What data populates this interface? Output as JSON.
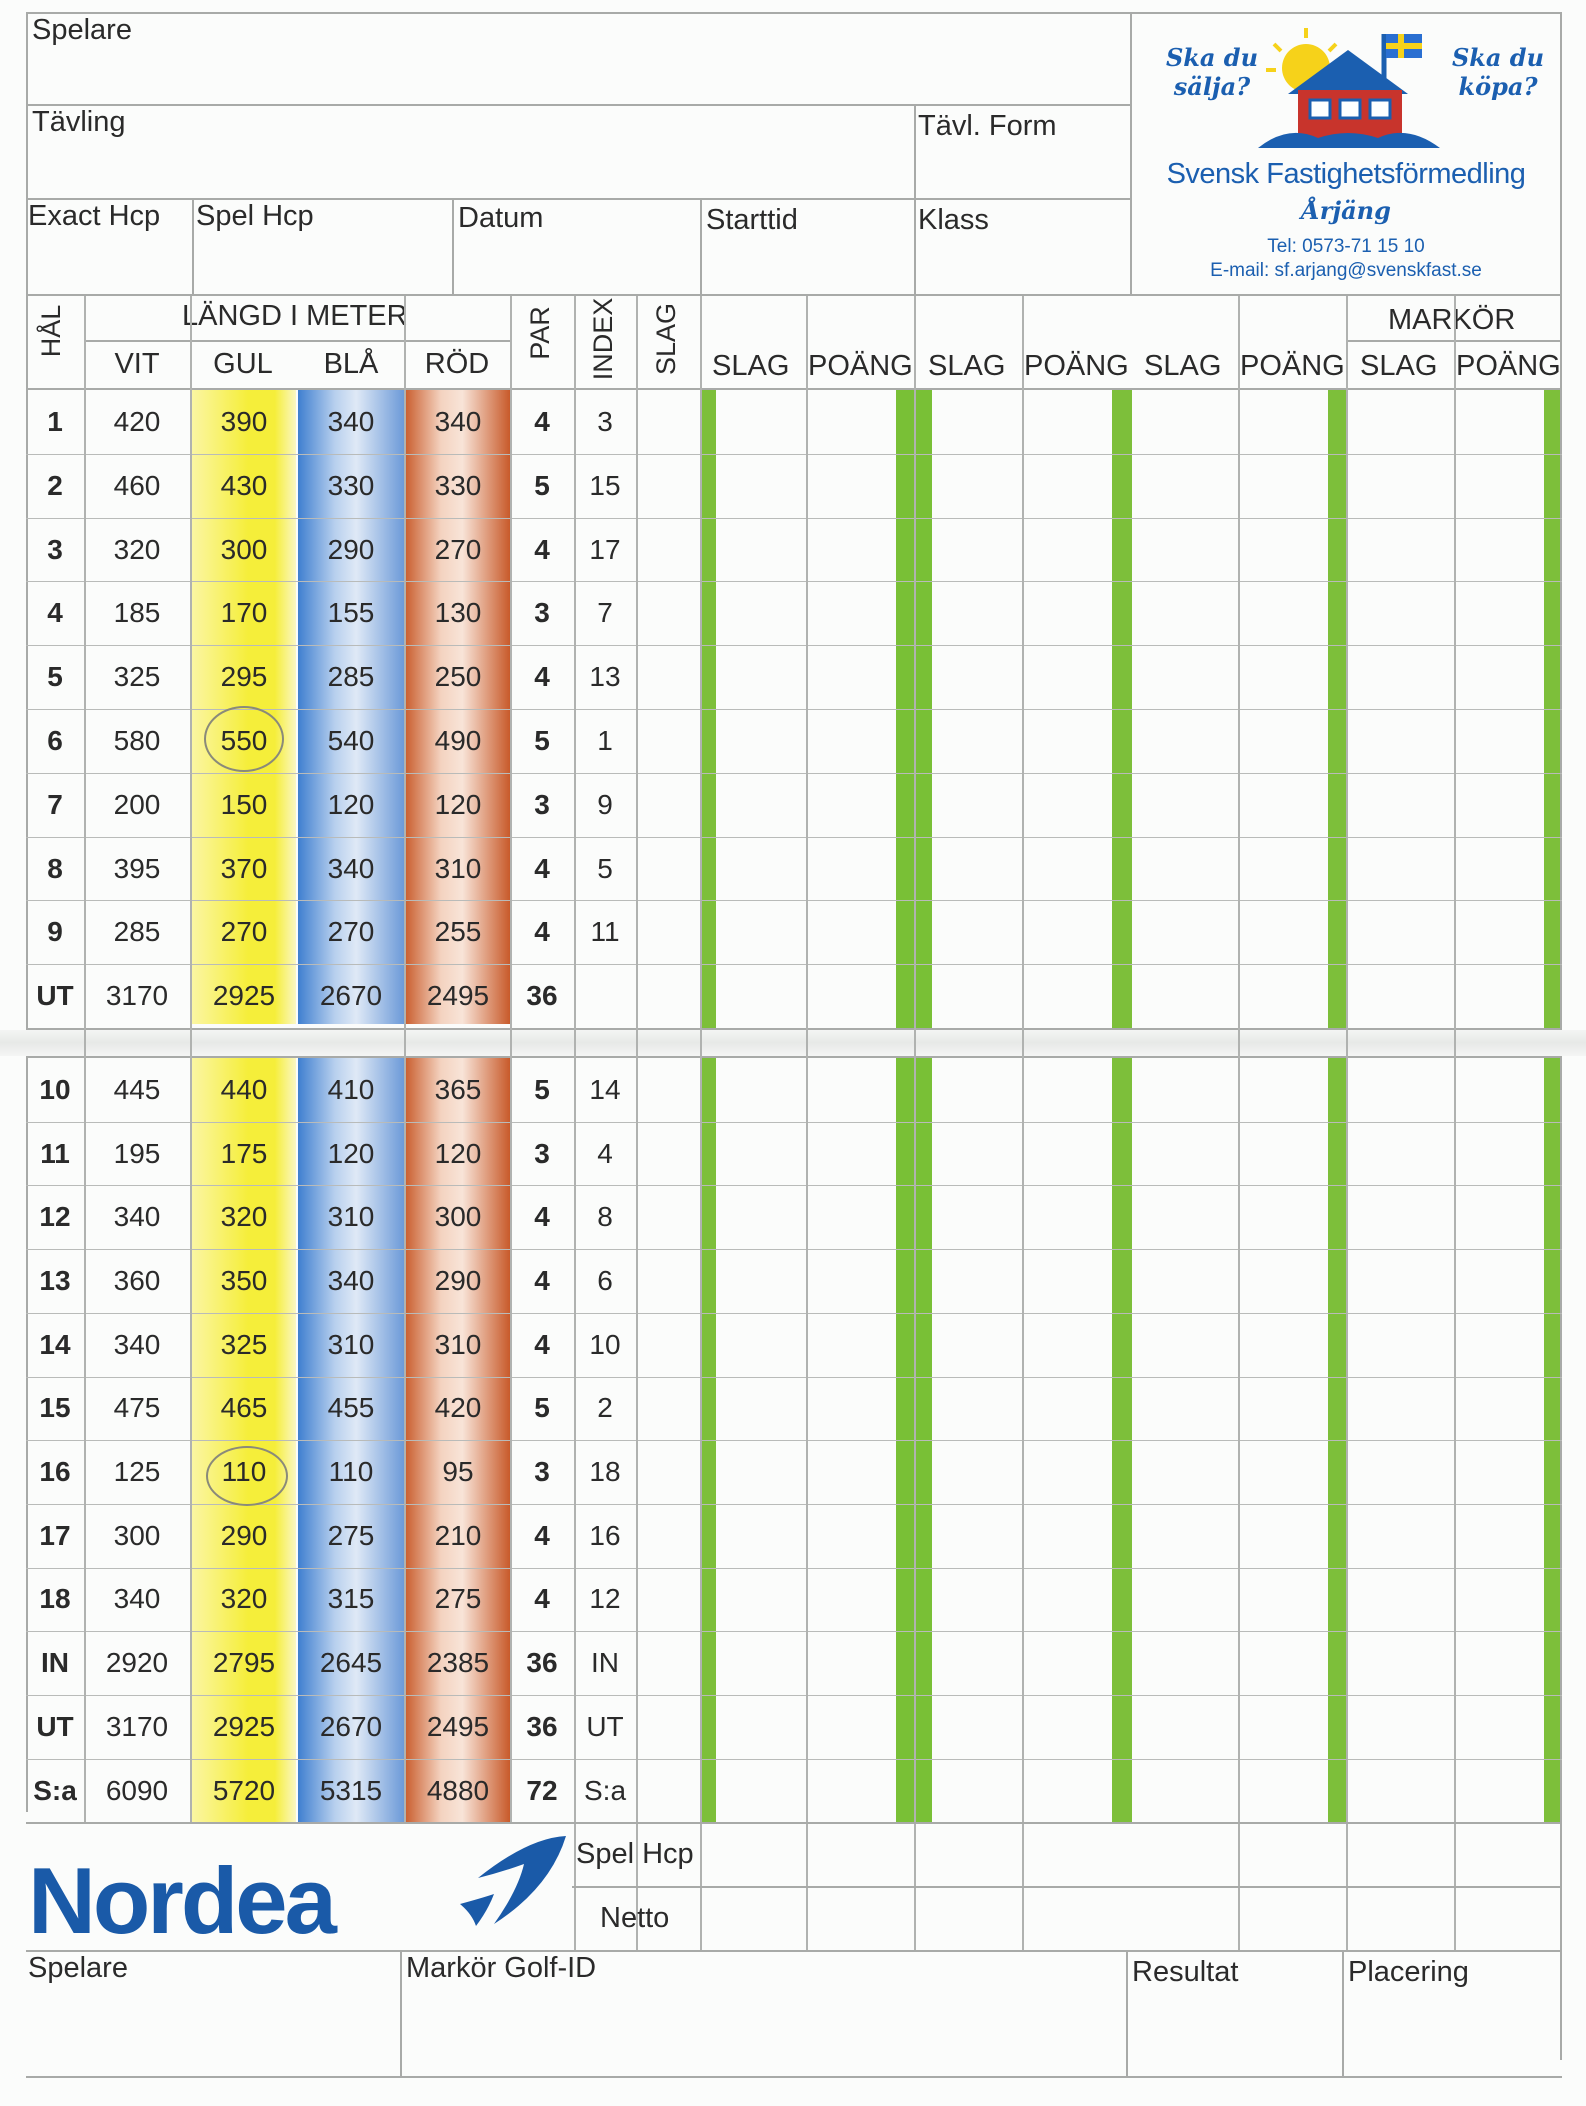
{
  "header": {
    "spelare": "Spelare",
    "tavling": "Tävling",
    "tavl_form": "Tävl. Form",
    "exact_hcp": "Exact Hcp",
    "spel_hcp": "Spel Hcp",
    "datum": "Datum",
    "starttid": "Starttid",
    "klass": "Klass"
  },
  "ad": {
    "ska_salja": "Ska du sälja?",
    "ska_kopa": "Ska du köpa?",
    "company": "Svensk Fastighetsförmedling",
    "city": "Årjäng",
    "phone": "Tel: 0573-71 15 10",
    "email": "E-mail: sf.arjang@svenskfast.se",
    "colors": {
      "blue": "#1b5fb0",
      "roof": "#c8342c",
      "sun": "#f6d21a",
      "flag_blue": "#2a6fd1",
      "flag_yellow": "#f6d21a"
    }
  },
  "table_head": {
    "hal": "HÅL",
    "langd": "LÄNGD I METER",
    "tees": [
      "VIT",
      "GUL",
      "BLÅ",
      "RÖD"
    ],
    "par": "PAR",
    "index": "INDEX",
    "slag": "SLAG",
    "markor": "MARKÖR",
    "score_cols": [
      "SLAG",
      "POÄNG",
      "SLAG",
      "POÄNG",
      "SLAG",
      "POÄNG",
      "SLAG",
      "POÄNG"
    ]
  },
  "front_rows": [
    [
      "1",
      "420",
      "390",
      "340",
      "340",
      "4",
      "3"
    ],
    [
      "2",
      "460",
      "430",
      "330",
      "330",
      "5",
      "15"
    ],
    [
      "3",
      "320",
      "300",
      "290",
      "270",
      "4",
      "17"
    ],
    [
      "4",
      "185",
      "170",
      "155",
      "130",
      "3",
      "7"
    ],
    [
      "5",
      "325",
      "295",
      "285",
      "250",
      "4",
      "13"
    ],
    [
      "6",
      "580",
      "550",
      "540",
      "490",
      "5",
      "1"
    ],
    [
      "7",
      "200",
      "150",
      "120",
      "120",
      "3",
      "9"
    ],
    [
      "8",
      "395",
      "370",
      "340",
      "310",
      "4",
      "5"
    ],
    [
      "9",
      "285",
      "270",
      "270",
      "255",
      "4",
      "11"
    ],
    [
      "UT",
      "3170",
      "2925",
      "2670",
      "2495",
      "36",
      ""
    ]
  ],
  "back_rows": [
    [
      "10",
      "445",
      "440",
      "410",
      "365",
      "5",
      "14"
    ],
    [
      "11",
      "195",
      "175",
      "120",
      "120",
      "3",
      "4"
    ],
    [
      "12",
      "340",
      "320",
      "310",
      "300",
      "4",
      "8"
    ],
    [
      "13",
      "360",
      "350",
      "340",
      "290",
      "4",
      "6"
    ],
    [
      "14",
      "340",
      "325",
      "310",
      "310",
      "4",
      "10"
    ],
    [
      "15",
      "475",
      "465",
      "455",
      "420",
      "5",
      "2"
    ],
    [
      "16",
      "125",
      "110",
      "110",
      "95",
      "3",
      "18"
    ],
    [
      "17",
      "300",
      "290",
      "275",
      "210",
      "4",
      "16"
    ],
    [
      "18",
      "340",
      "320",
      "315",
      "275",
      "4",
      "12"
    ],
    [
      "IN",
      "2920",
      "2795",
      "2645",
      "2385",
      "36",
      "IN"
    ],
    [
      "UT",
      "3170",
      "2925",
      "2670",
      "2495",
      "36",
      "UT"
    ],
    [
      "S:a",
      "6090",
      "5720",
      "5315",
      "4880",
      "72",
      "S:a"
    ]
  ],
  "footer": {
    "logo": "Nordea",
    "spel_hcp": "Spel Hcp",
    "netto": "Netto",
    "spelare": "Spelare",
    "markor_golf_id": "Markör Golf-ID",
    "resultat": "Resultat",
    "placering": "Placering"
  },
  "colors": {
    "gul": "#f5ee3a",
    "bla": "#3f7fd0",
    "rod": "#c85a2a",
    "green": "#7dbf3a",
    "nordea_blue": "#1a5aa8"
  }
}
